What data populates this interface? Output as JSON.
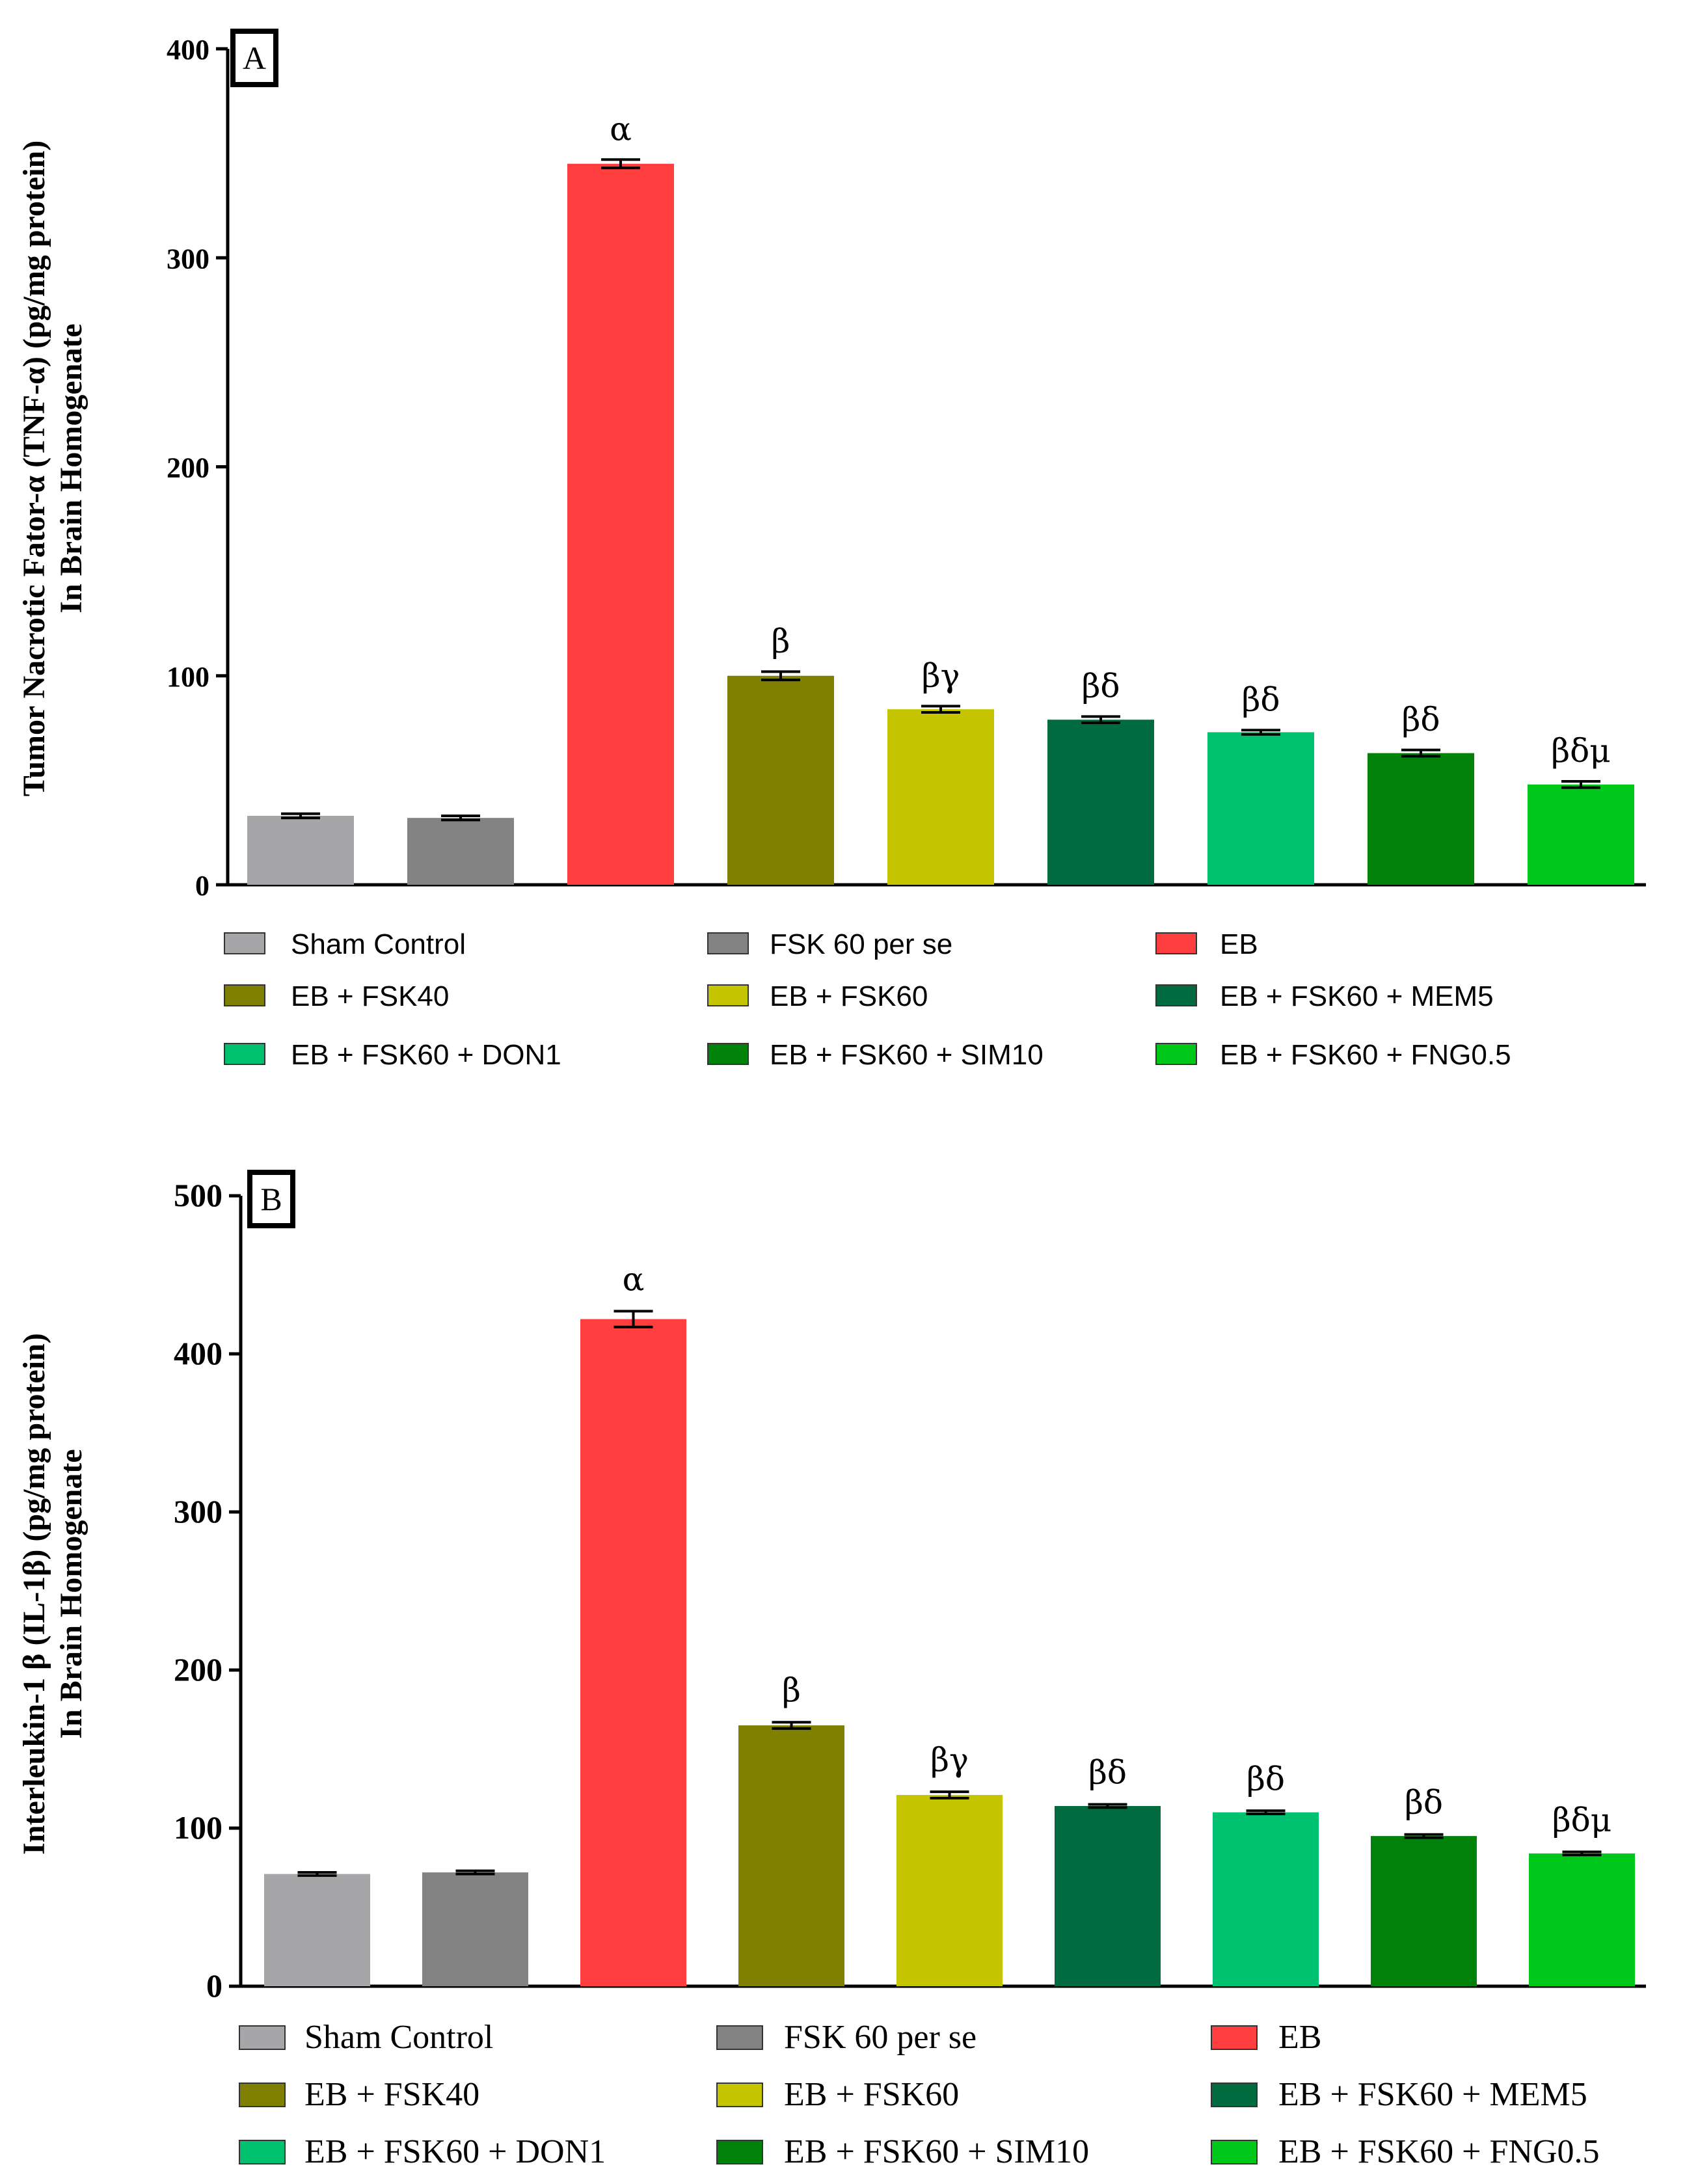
{
  "chart_data": [
    {
      "type": "bar",
      "panel_label": "A",
      "ylabel_line1": "Tumor Nacrotic Fator-α (TNF-α) (pg/mg protein)",
      "ylabel_line2": "In Brain Homogenate",
      "ylim": [
        0,
        400
      ],
      "yticks": [
        "0",
        "100",
        "200",
        "300",
        "400"
      ],
      "categories": [
        "Sham Control",
        "FSK 60 per se",
        "EB",
        "EB + FSK40",
        "EB + FSK60",
        "EB + FSK60 + MEM5",
        "EB + FSK60 + DON1",
        "EB + FSK60 + SIM10",
        "EB + FSK60 + FNG0.5"
      ],
      "values": [
        33,
        32,
        345,
        100,
        84,
        79,
        73,
        63,
        48
      ],
      "errors": [
        1,
        1,
        2,
        2,
        1.5,
        1.5,
        1,
        1.5,
        1.5
      ],
      "annotations": [
        "",
        "",
        "α",
        "β",
        "βγ",
        "βδ",
        "βδ",
        "βδ",
        "βδμ"
      ],
      "colors": [
        "#a6a6a8",
        "#838383",
        "#ff3f3f",
        "#808000",
        "#c4c400",
        "#006b3f",
        "#00c170",
        "#00820a",
        "#00c81a"
      ],
      "legend": [
        "Sham Control",
        "FSK 60 per se",
        "EB",
        "EB + FSK40",
        "EB + FSK60",
        "EB + FSK60 + MEM5",
        "EB + FSK60 + DON1",
        "EB + FSK60 + SIM10",
        "EB + FSK60 + FNG0.5"
      ]
    },
    {
      "type": "bar",
      "panel_label": "B",
      "ylabel_line1": "Interleukin-1 β (IL-1β) (pg/mg protein)",
      "ylabel_line2": "In Brain Homogenate",
      "ylim": [
        0,
        500
      ],
      "yticks": [
        "0",
        "100",
        "200",
        "300",
        "400",
        "500"
      ],
      "categories": [
        "Sham Control",
        "FSK 60 per se",
        "EB",
        "EB + FSK40",
        "EB + FSK60",
        "EB + FSK60 + MEM5",
        "EB + FSK60 + DON1",
        "EB + FSK60 + SIM10",
        "EB + FSK60 + FNG0.5"
      ],
      "values": [
        71,
        72,
        422,
        165,
        121,
        114,
        110,
        95,
        84
      ],
      "errors": [
        1,
        1,
        5,
        2,
        2,
        1,
        1,
        1,
        1
      ],
      "annotations": [
        "",
        "",
        "α",
        "β",
        "βγ",
        "βδ",
        "βδ",
        "βδ",
        "βδμ"
      ],
      "colors": [
        "#a6a6a8",
        "#838383",
        "#ff3f3f",
        "#808000",
        "#c4c400",
        "#006b3f",
        "#00c170",
        "#00820a",
        "#00c81a"
      ],
      "legend": [
        "Sham Control",
        "FSK 60 per se",
        "EB",
        "EB + FSK40",
        "EB + FSK60",
        "EB + FSK60 + MEM5",
        "EB + FSK60 + DON1",
        "EB + FSK60 + SIM10",
        "EB + FSK60 + FNG0.5"
      ]
    }
  ]
}
